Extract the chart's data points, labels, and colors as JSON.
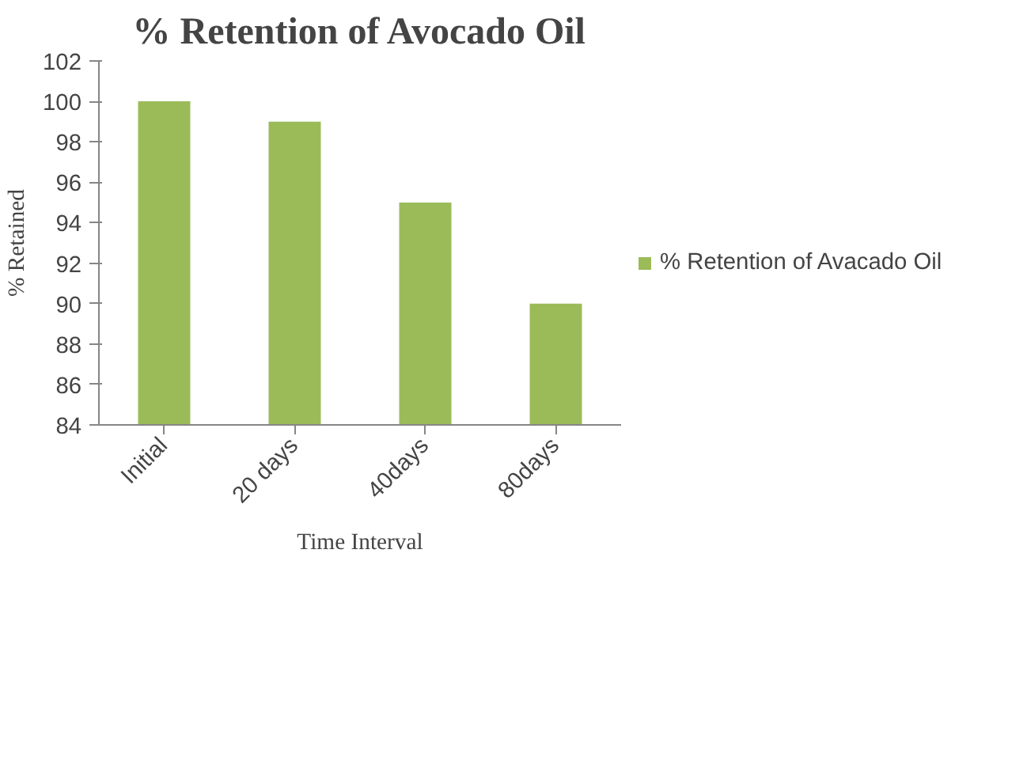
{
  "chart_data": {
    "type": "bar",
    "title": "% Retention of Avocado Oil",
    "ylabel": "% Retained",
    "xlabel": "Time Interval",
    "categories": [
      "Initial",
      "20 days",
      "40days",
      "80days"
    ],
    "series": [
      {
        "name": "% Retention of Avacado Oil",
        "color": "#9bbb59",
        "values": [
          100,
          99,
          95,
          90
        ]
      }
    ],
    "ylim": [
      84,
      102
    ],
    "yticks": [
      84,
      86,
      88,
      90,
      92,
      94,
      96,
      98,
      100,
      102
    ],
    "grid": false,
    "legend": "right"
  }
}
